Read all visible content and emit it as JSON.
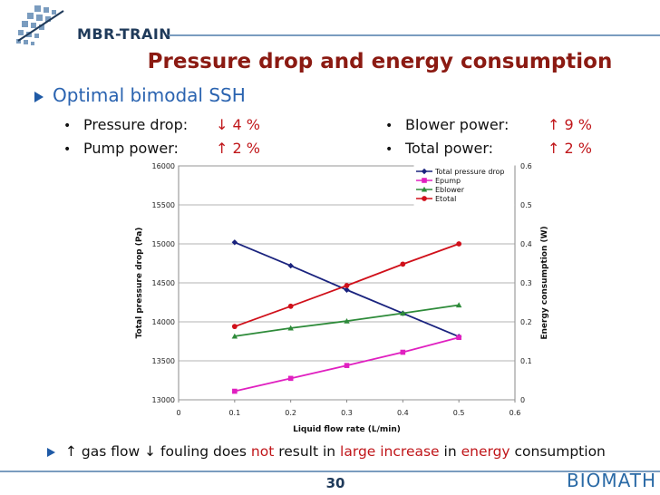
{
  "logo": {
    "name": "MBR-TRAIN"
  },
  "title": "Pressure drop and energy consumption",
  "section": "Optimal bimodal SSH",
  "left_bullets": [
    {
      "label": "Pressure drop:",
      "value": "↓ 4 %"
    },
    {
      "label": "Pump power:",
      "value": "↑ 2 %"
    }
  ],
  "right_bullets": [
    {
      "label": "Blower power:",
      "value": "↑ 9 %"
    },
    {
      "label": "Total power:",
      "value": "↑ 2 %"
    }
  ],
  "bottom": {
    "up": "↑",
    "gas": " gas flow ",
    "down": "↓",
    "fouling": " fouling does ",
    "not": "not",
    "result": " result in ",
    "large": "large increase",
    "in": " in ",
    "energy": "energy",
    "consumption": " consumption"
  },
  "page_number": "30",
  "footer_logo": "BIOMATH",
  "colors": {
    "accent": "#2a63b0",
    "title": "#8b1a12",
    "highlight": "#c0161a"
  },
  "chart_data": {
    "type": "line",
    "xlabel": "Liquid flow rate (L/min)",
    "ylabel": "Total pressure drop (Pa)",
    "y2label": "Energy consumption (W)",
    "xlim": [
      0,
      0.6
    ],
    "xticks": [
      0,
      0.1,
      0.2,
      0.3,
      0.4,
      0.5,
      0.6
    ],
    "ylim": [
      13000,
      16000
    ],
    "yticks": [
      13000,
      13500,
      14000,
      14500,
      15000,
      15500,
      16000
    ],
    "y2lim": [
      0,
      0.6
    ],
    "y2ticks": [
      0,
      0.1,
      0.2,
      0.3,
      0.4,
      0.5,
      0.6
    ],
    "grid": true,
    "legend_position": "top-right",
    "series": [
      {
        "name": "Total pressure drop",
        "axis": "left",
        "color": "#1a237e",
        "marker": "diamond",
        "x": [
          0.1,
          0.2,
          0.3,
          0.4,
          0.5
        ],
        "values": [
          15020,
          14720,
          14410,
          14110,
          13810
        ]
      },
      {
        "name": "Epump",
        "axis": "right",
        "color": "#e020c0",
        "marker": "square",
        "x": [
          0.1,
          0.2,
          0.3,
          0.4,
          0.5
        ],
        "values": [
          0.022,
          0.055,
          0.088,
          0.122,
          0.16
        ]
      },
      {
        "name": "Eblower",
        "axis": "right",
        "color": "#2e8b3a",
        "marker": "triangle",
        "x": [
          0.1,
          0.2,
          0.3,
          0.4,
          0.5
        ],
        "values": [
          0.163,
          0.184,
          0.202,
          0.222,
          0.243
        ]
      },
      {
        "name": "Etotal",
        "axis": "right",
        "color": "#d0101a",
        "marker": "circle",
        "x": [
          0.1,
          0.2,
          0.3,
          0.4,
          0.5
        ],
        "values": [
          0.188,
          0.24,
          0.293,
          0.348,
          0.4
        ]
      }
    ]
  }
}
